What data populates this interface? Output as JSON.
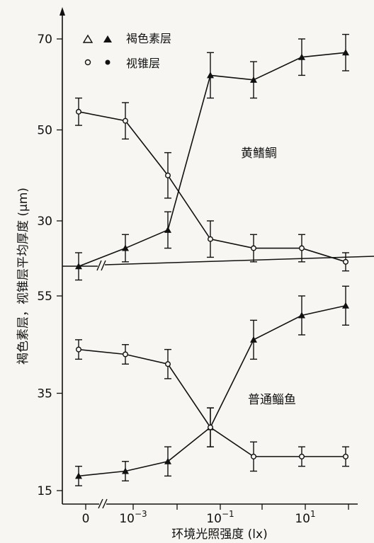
{
  "chart_data": [
    {
      "type": "line",
      "panel": "top",
      "label": "黄鳍鲷",
      "y_ticks": [
        30,
        50,
        70
      ],
      "ylim": [
        20,
        72
      ],
      "x_positions": [
        "0",
        "0.001",
        "0.01",
        "0.1",
        "1",
        "10",
        "100"
      ],
      "series": [
        {
          "name": "褐色素层",
          "marker": "triangle",
          "values": [
            20,
            24,
            28,
            62,
            61,
            66,
            67
          ],
          "errors": [
            3,
            3,
            4,
            5,
            4,
            4,
            4
          ]
        },
        {
          "name": "视锥层",
          "marker": "circle",
          "values": [
            54,
            52,
            40,
            26,
            24,
            24,
            21
          ],
          "errors": [
            3,
            4,
            5,
            4,
            3,
            3,
            2
          ]
        }
      ]
    },
    {
      "type": "line",
      "panel": "bottom",
      "label": "普通鲻鱼",
      "y_ticks": [
        15,
        35,
        55
      ],
      "ylim": [
        13,
        59
      ],
      "x_positions": [
        "0",
        "0.001",
        "0.01",
        "0.1",
        "1",
        "10",
        "100"
      ],
      "series": [
        {
          "name": "褐色素层",
          "marker": "triangle",
          "values": [
            18,
            19,
            21,
            28,
            46,
            51,
            53
          ],
          "errors": [
            2,
            2,
            3,
            4,
            4,
            4,
            4
          ]
        },
        {
          "name": "视锥层",
          "marker": "circle",
          "values": [
            44,
            43,
            41,
            28,
            22,
            22,
            22
          ],
          "errors": [
            2,
            2,
            3,
            4,
            3,
            2,
            2
          ]
        }
      ]
    }
  ],
  "labels": {
    "ylabel": "褐色素层，视锥层平均厚度 (μm)",
    "xlabel": "环境光照强度 (lx)",
    "legend_triangle": "褐色素层",
    "legend_circle": "视锥层",
    "x_tick_zero": "0",
    "x_tick_mid_base": "10",
    "x_tick_mid_exp": "−3",
    "x_tick_b_base": "10",
    "x_tick_b_exp": "−1",
    "x_tick_c_base": "10",
    "x_tick_c_exp": "1"
  },
  "colors": {
    "ink": "#111111",
    "paper": "#f7f6f2"
  }
}
